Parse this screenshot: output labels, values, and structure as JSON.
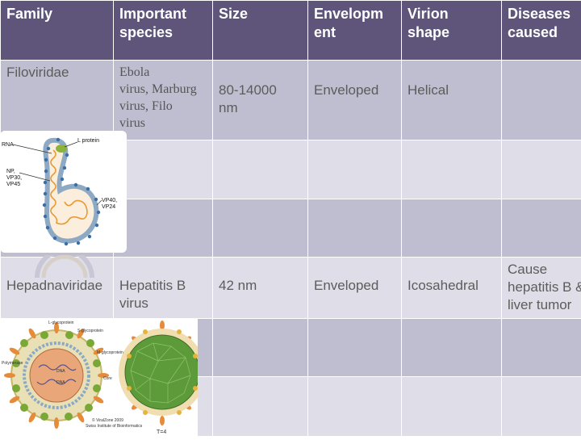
{
  "table": {
    "headers": [
      "Family",
      "Important species",
      "Size",
      "Envelopm ent",
      "Virion shape",
      "Diseases caused"
    ],
    "header_lines": [
      [
        "Family"
      ],
      [
        "Important",
        "species"
      ],
      [
        "Size"
      ],
      [
        "Envelopm",
        "ent"
      ],
      [
        "Virion",
        "shape"
      ],
      [
        "Diseases",
        "caused"
      ]
    ],
    "rows": [
      {
        "family": "Filoviridae",
        "species_lines": [
          "Ebola",
          "virus, Marburg",
          "virus, Filo",
          "virus"
        ],
        "size_lines": [
          "80-14000",
          "nm"
        ],
        "envelope": "Enveloped",
        "shape": "Helical",
        "disease_lines": []
      },
      {
        "family": "Hepadnaviridae",
        "species_lines": [
          "Hepatitis B",
          "virus"
        ],
        "size_lines": [
          "42 nm"
        ],
        "envelope": "Enveloped",
        "shape": "Icosahedral",
        "disease_lines": [
          "Cause",
          "hepatitis B &",
          "liver tumor"
        ]
      }
    ]
  },
  "ebola_diagram": {
    "labels": {
      "rna": "RNA",
      "l_protein": "L protein",
      "np_lines": [
        "NP,",
        "VP30,",
        "VP45"
      ],
      "vp_lines": [
        "VP40,",
        "VP24"
      ]
    }
  },
  "hbv_diagram": {
    "labels": {
      "l_glycoprotein": "L-glycoprotein",
      "s_glycoprotein": "S-glycoprotein",
      "m_glycoprotein": "M-glycoprotein",
      "polymerase": "Polymerase",
      "core": "Core",
      "dna1": "DNA",
      "dna2": "DNA",
      "copyright": "© ViralZone 2009",
      "copyright2": "Swiss Institute of Bioinformatics",
      "t4": "T=4"
    }
  },
  "colors": {
    "header": "#5f5479",
    "band_dark": "#bfbdd0",
    "band_light": "#dfdee8"
  }
}
